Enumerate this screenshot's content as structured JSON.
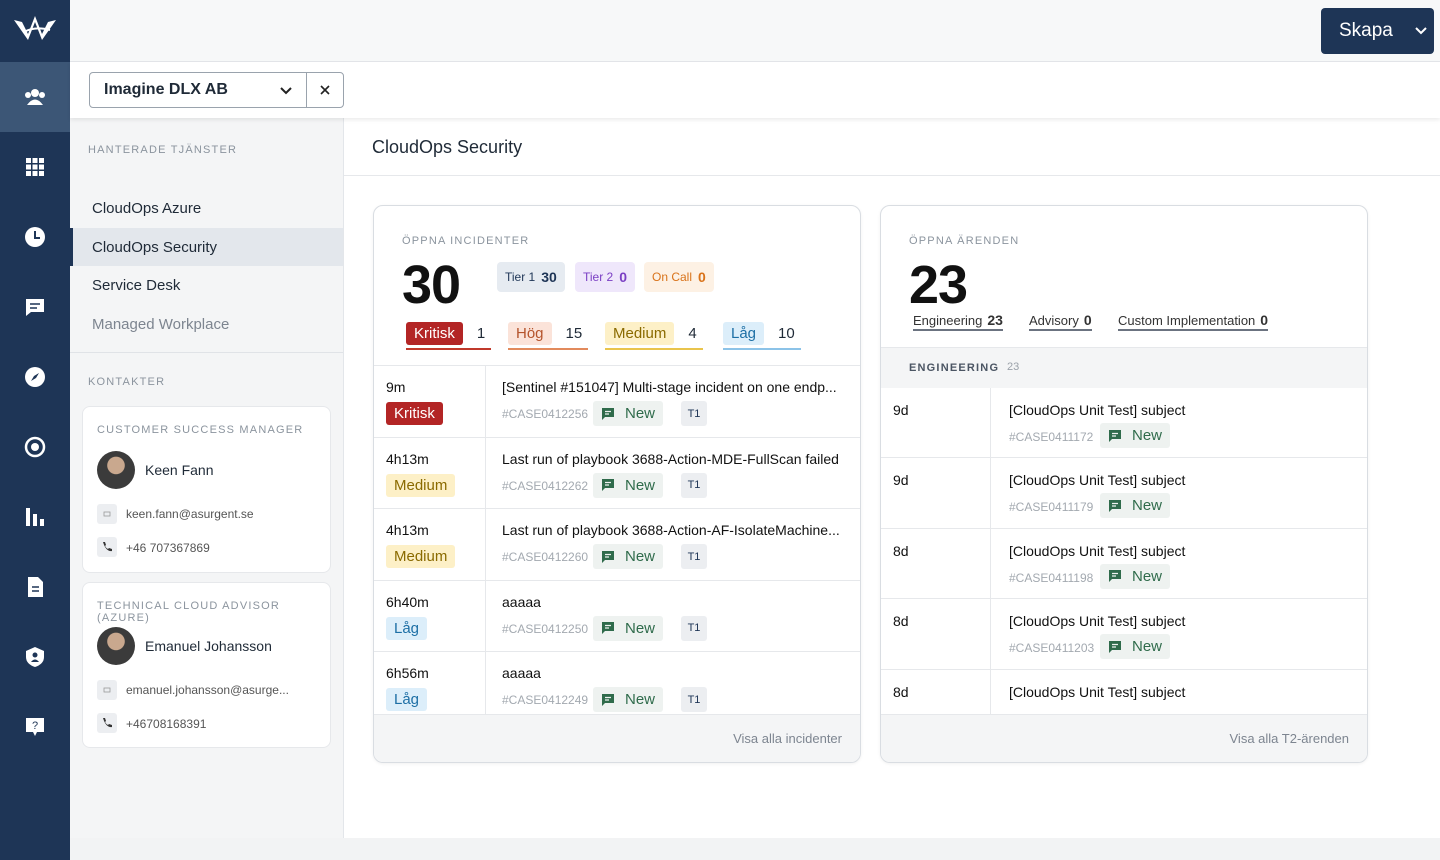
{
  "header": {
    "button": "Skapa"
  },
  "customer_select": "Imagine DLX AB",
  "sidebar": {
    "services_heading": "HANTERADE TJÄNSTER",
    "services": [
      "CloudOps Azure",
      "CloudOps Security",
      "Service Desk",
      "Managed Workplace"
    ],
    "contacts_heading": "KONTAKTER",
    "contacts": [
      {
        "role": "CUSTOMER SUCCESS MANAGER",
        "name": "Keen Fann",
        "email": "keen.fann@asurgent.se",
        "phone": "+46 707367869"
      },
      {
        "role": "TECHNICAL CLOUD ADVISOR (AZURE)",
        "name": "Emanuel Johansson",
        "email": "emanuel.johansson@asurge...",
        "phone": "+46708168391"
      }
    ]
  },
  "page_title": "CloudOps Security",
  "incidents": {
    "heading": "ÖPPNA INCIDENTER",
    "total": 30,
    "tiers": [
      {
        "label": "Tier 1",
        "count": 30
      },
      {
        "label": "Tier 2",
        "count": 0
      },
      {
        "label": "On Call",
        "count": 0
      }
    ],
    "priorities": [
      {
        "label": "Kritisk",
        "count": 1
      },
      {
        "label": "Hög",
        "count": 15
      },
      {
        "label": "Medium",
        "count": 4
      },
      {
        "label": "Låg",
        "count": 10
      }
    ],
    "rows": [
      {
        "age": "9m",
        "priority": "Kritisk",
        "title": "[Sentinel #151047] Multi-stage incident on one endp...",
        "case": "#CASE0412256",
        "status": "New",
        "tier": "T1"
      },
      {
        "age": "4h13m",
        "priority": "Medium",
        "title": "Last run of playbook 3688-Action-MDE-FullScan failed",
        "case": "#CASE0412262",
        "status": "New",
        "tier": "T1"
      },
      {
        "age": "4h13m",
        "priority": "Medium",
        "title": "Last run of playbook 3688-Action-AF-IsolateMachine...",
        "case": "#CASE0412260",
        "status": "New",
        "tier": "T1"
      },
      {
        "age": "6h40m",
        "priority": "Låg",
        "title": "aaaaa",
        "case": "#CASE0412250",
        "status": "New",
        "tier": "T1"
      },
      {
        "age": "6h56m",
        "priority": "Låg",
        "title": "aaaaa",
        "case": "#CASE0412249",
        "status": "New",
        "tier": "T1"
      }
    ],
    "footer": "Visa alla incidenter"
  },
  "cases": {
    "heading": "ÖPPNA ÄRENDEN",
    "total": 23,
    "categories": [
      {
        "label": "Engineering",
        "count": 23
      },
      {
        "label": "Advisory",
        "count": 0
      },
      {
        "label": "Custom Implementation",
        "count": 0
      }
    ],
    "group": {
      "label": "ENGINEERING",
      "count": 23
    },
    "rows": [
      {
        "age": "9d",
        "title": "[CloudOps Unit Test] subject",
        "case": "#CASE0411172",
        "status": "New"
      },
      {
        "age": "9d",
        "title": "[CloudOps Unit Test] subject",
        "case": "#CASE0411179",
        "status": "New"
      },
      {
        "age": "8d",
        "title": "[CloudOps Unit Test] subject",
        "case": "#CASE0411198",
        "status": "New"
      },
      {
        "age": "8d",
        "title": "[CloudOps Unit Test] subject",
        "case": "#CASE0411203",
        "status": "New"
      },
      {
        "age": "8d",
        "title": "[CloudOps Unit Test] subject"
      }
    ],
    "footer": "Visa alla T2-ärenden"
  }
}
